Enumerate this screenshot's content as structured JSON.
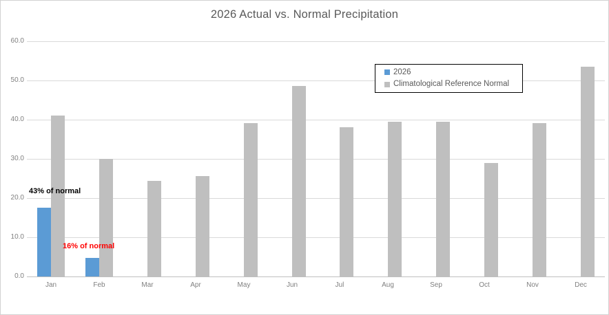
{
  "window": {
    "background": "#FFFFFF",
    "border_color": "#D2D2D2"
  },
  "chart_data": {
    "type": "bar",
    "title": "2026 Actual vs. Normal Precipitation",
    "title_color": "#595959",
    "categories": [
      "Jan",
      "Feb",
      "Mar",
      "Apr",
      "May",
      "Jun",
      "Jul",
      "Aug",
      "Sep",
      "Oct",
      "Nov",
      "Dec"
    ],
    "series": [
      {
        "name": "2026",
        "color": "#5B9BD5",
        "values": [
          17.6,
          4.8,
          null,
          null,
          null,
          null,
          null,
          null,
          null,
          null,
          null,
          null
        ]
      },
      {
        "name": "Climatological Reference Normal",
        "color": "#BFBFBF",
        "values": [
          41.0,
          30.0,
          24.3,
          25.7,
          39.2,
          48.6,
          38.1,
          39.4,
          39.4,
          28.9,
          39.1,
          53.5
        ]
      }
    ],
    "ylim": [
      0,
      60
    ],
    "ytick_interval": 10,
    "ytick_labels": [
      "0.0",
      "10.0",
      "20.0",
      "30.0",
      "40.0",
      "50.0",
      "60.0"
    ],
    "grid": true,
    "gridline_color": "#D9D9D9",
    "axisline_color": "#BFBFBF",
    "tick_label_color": "#7F7F7F",
    "legend_position": "top-right-inside",
    "legend_border_color": "#000000",
    "annotations": [
      {
        "text": "43% of normal",
        "color": "#000000",
        "month": "Jan"
      },
      {
        "text": "16% of normal",
        "color": "#FF0000",
        "month": "Feb"
      }
    ]
  }
}
